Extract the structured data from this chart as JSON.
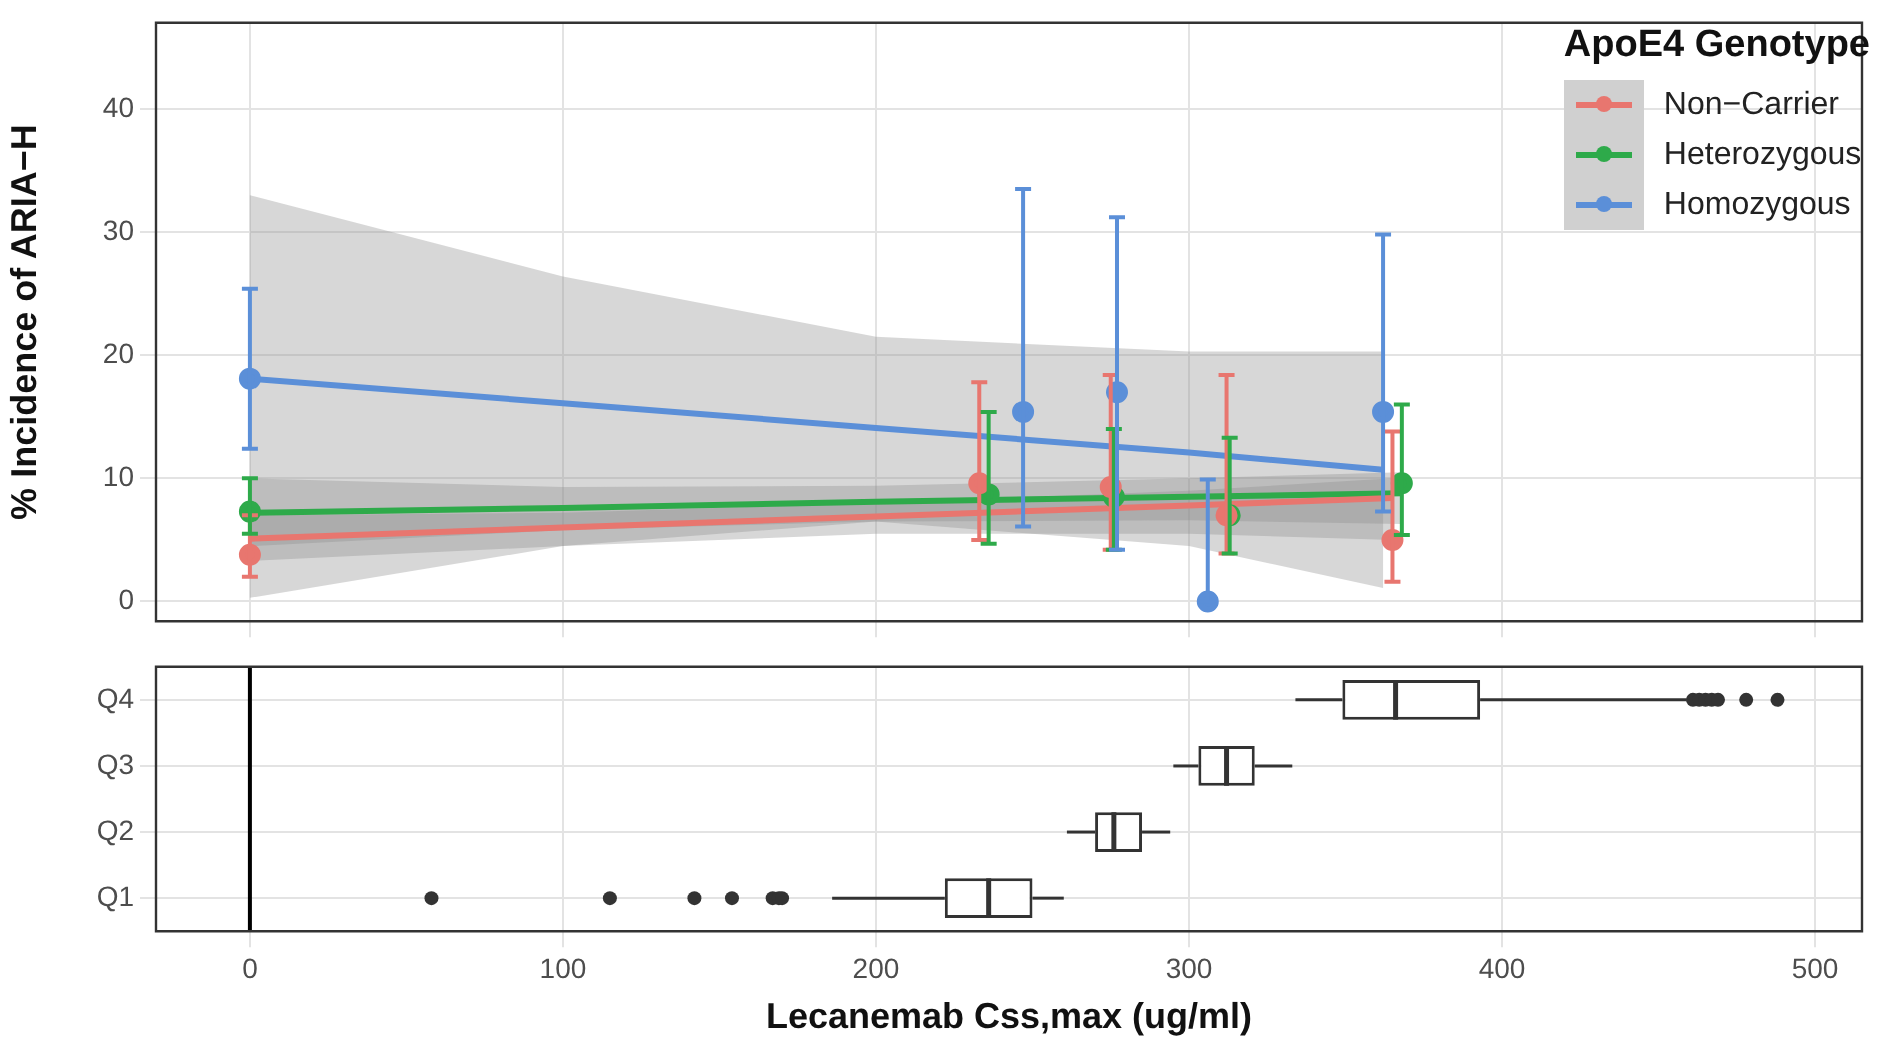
{
  "chart_data": [
    {
      "type": "scatter",
      "ylabel": "% Incidence of ARIA−H",
      "legend_title": "ApoE4 Genotype",
      "legend": "top right",
      "grid": true,
      "tick_labels": "y",
      "xlim": [
        -30,
        515
      ],
      "xticks": [
        0,
        100,
        200,
        300,
        400,
        500
      ],
      "ylim": [
        -1.6,
        47
      ],
      "yticks": [
        0,
        10,
        20,
        30,
        40
      ],
      "series": [
        {
          "name": "Non−Carrier",
          "marker": "circle",
          "color": "#e8766f",
          "x": [
            0,
            233,
            275,
            312,
            365
          ],
          "values": [
            3.8,
            9.6,
            9.3,
            7.0,
            5.0
          ],
          "errors": [
            [
              2.0,
              7.0
            ],
            [
              5.0,
              17.8
            ],
            [
              4.2,
              18.4
            ],
            [
              3.9,
              18.4
            ],
            [
              1.6,
              13.8
            ]
          ]
        },
        {
          "name": "Heterozygous",
          "marker": "circle",
          "color": "#2eaa4a",
          "x": [
            0,
            236,
            276,
            313,
            368
          ],
          "values": [
            7.3,
            8.7,
            8.5,
            7.0,
            9.6
          ],
          "errors": [
            [
              5.5,
              10.0
            ],
            [
              4.7,
              15.4
            ],
            [
              4.2,
              14.0
            ],
            [
              3.9,
              13.3
            ],
            [
              5.4,
              16.0
            ]
          ]
        },
        {
          "name": "Homozygous",
          "marker": "circle",
          "color": "#5b8fd8",
          "x": [
            0,
            247,
            277,
            306,
            362
          ],
          "values": [
            18.1,
            15.4,
            17.0,
            0,
            15.4
          ],
          "errors": [
            [
              12.4,
              25.4
            ],
            [
              6.1,
              33.5
            ],
            [
              4.2,
              31.2
            ],
            [
              0,
              9.9
            ],
            [
              7.3,
              29.8
            ]
          ]
        },
        {
          "type": "line",
          "color": "#e8766f",
          "x": [
            0,
            100,
            200,
            300,
            365
          ],
          "values": [
            5.1,
            6.0,
            6.9,
            7.8,
            8.4
          ],
          "lower": [
            3.3,
            4.5,
            5.5,
            5.5,
            5.0
          ],
          "upper": [
            7.0,
            7.2,
            8.0,
            9.0,
            10.0
          ]
        },
        {
          "type": "line",
          "color": "#2eaa4a",
          "x": [
            0,
            100,
            200,
            300,
            368
          ],
          "values": [
            7.2,
            7.6,
            8.1,
            8.5,
            8.8
          ],
          "lower": [
            4.5,
            5.8,
            6.5,
            6.6,
            6.3
          ],
          "upper": [
            10.0,
            9.3,
            9.4,
            10.0,
            10.5
          ]
        },
        {
          "type": "line",
          "color": "#5b8fd8",
          "x": [
            0,
            100,
            200,
            300,
            362
          ],
          "values": [
            18.1,
            16.1,
            14.1,
            12.1,
            10.7
          ],
          "lower": [
            0.3,
            4.5,
            6.5,
            4.5,
            1.1
          ],
          "upper": [
            33.0,
            26.4,
            21.5,
            20.3,
            20.3
          ]
        }
      ]
    },
    {
      "type": "box",
      "orientation": "horizontal",
      "xlabel": "Lecanemab Css,max (ug/ml)",
      "grid": true,
      "categories": [
        "Q4",
        "Q3",
        "Q2",
        "Q1"
      ],
      "xlim": [
        -30,
        515
      ],
      "xticks": [
        0,
        100,
        200,
        300,
        400,
        500
      ],
      "color": "#333333",
      "boxes": [
        {
          "low": 334,
          "q1": 349,
          "median": 366,
          "q3": 393,
          "high": 459,
          "outliers": [
            461,
            463,
            465,
            467,
            469,
            478,
            488
          ]
        },
        {
          "low": 295,
          "q1": 303,
          "median": 312,
          "q3": 321,
          "high": 333
        },
        {
          "low": 261,
          "q1": 270,
          "median": 276,
          "q3": 285,
          "high": 294
        },
        {
          "low": 186,
          "q1": 222,
          "median": 236,
          "q3": 250,
          "high": 260,
          "outliers": [
            58,
            115,
            142,
            154,
            167,
            169,
            170
          ]
        }
      ],
      "ref_lines": [
        {
          "axis": "x",
          "value": 0,
          "color": "#000000"
        }
      ]
    }
  ]
}
